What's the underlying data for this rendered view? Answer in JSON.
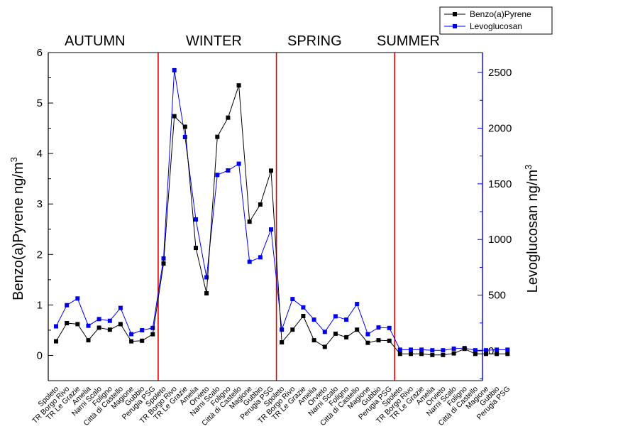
{
  "chart_data": {
    "type": "line",
    "categories": [
      "Spoleto",
      "TR Borgo Rivo",
      "TR Le Grazie",
      "Amelia",
      "Narni Scalo",
      "Foligno",
      "Città di Castello",
      "Magione",
      "Gubbio",
      "Perugia PSG",
      "Spoleto",
      "TR Borgo Rivo",
      "TR Le Grazie",
      "Amelia",
      "Orvieto",
      "Narni Scalo",
      "Foligno",
      "Città di Castello",
      "Magione",
      "Gubbio",
      "Perugia PSG",
      "Spoleto",
      "TR Borgo Rivo",
      "TR Le Grazie",
      "Amelia",
      "Orvieto",
      "Narni Scalo",
      "Foligno",
      "Città di Castello",
      "Magione",
      "Gubbio",
      "Perugia PSG",
      "Spoleto",
      "TR Borgo Rivo",
      "TR Le Grazie",
      "Amelia",
      "Orvieto",
      "Narni Scalo",
      "Foligno",
      "Città di Castello",
      "Magione",
      "Gubbio",
      "Perugia PSG"
    ],
    "seasons": [
      {
        "label": "AUTUMN",
        "start": 0,
        "end": 9
      },
      {
        "label": "WINTER",
        "start": 10,
        "end": 20
      },
      {
        "label": "SPRING",
        "start": 21,
        "end": 31
      },
      {
        "label": "SUMMER",
        "start": 32,
        "end": 42
      }
    ],
    "series": [
      {
        "name": "Benzo(a)Pyrene",
        "axis": "left",
        "color": "#000000",
        "values": [
          0.28,
          0.64,
          0.62,
          0.3,
          0.55,
          0.51,
          0.62,
          0.28,
          0.29,
          0.42,
          1.82,
          4.74,
          4.53,
          2.13,
          1.23,
          4.33,
          4.71,
          5.35,
          2.65,
          2.99,
          3.66,
          0.26,
          0.51,
          0.78,
          0.3,
          0.17,
          0.43,
          0.36,
          0.51,
          0.25,
          0.3,
          0.29,
          0.03,
          0.03,
          0.03,
          0.01,
          0.01,
          0.04,
          0.13,
          0.03,
          0.03,
          0.03,
          0.03
        ]
      },
      {
        "name": "Levoglucosan",
        "axis": "right",
        "color": "#0000ee",
        "values": [
          220,
          410,
          470,
          225,
          285,
          270,
          385,
          150,
          185,
          205,
          830,
          2520,
          1920,
          1180,
          660,
          1580,
          1620,
          1680,
          800,
          840,
          1090,
          190,
          465,
          390,
          280,
          170,
          310,
          280,
          420,
          150,
          210,
          205,
          10,
          10,
          10,
          5,
          5,
          20,
          25,
          5,
          5,
          10,
          10
        ]
      }
    ],
    "y_left": {
      "label": "Benzo(a)Pyrene ng/m",
      "sup": "3",
      "range": [
        -0.5,
        6
      ],
      "ticks": [
        "0",
        "1",
        "2",
        "3",
        "4",
        "5",
        "6"
      ]
    },
    "y_right": {
      "label": "Levoglucosan ng/m",
      "sup": "3",
      "range": [
        -268,
        2679
      ],
      "ticks": [
        "0",
        "500",
        "1000",
        "1500",
        "2000",
        "2500"
      ]
    },
    "legend": {
      "placement": "top-right"
    },
    "colors": {
      "benzo": "#000000",
      "levo": "#0000ee",
      "divider": "#e00000",
      "right_axis": "#0000ee"
    }
  }
}
